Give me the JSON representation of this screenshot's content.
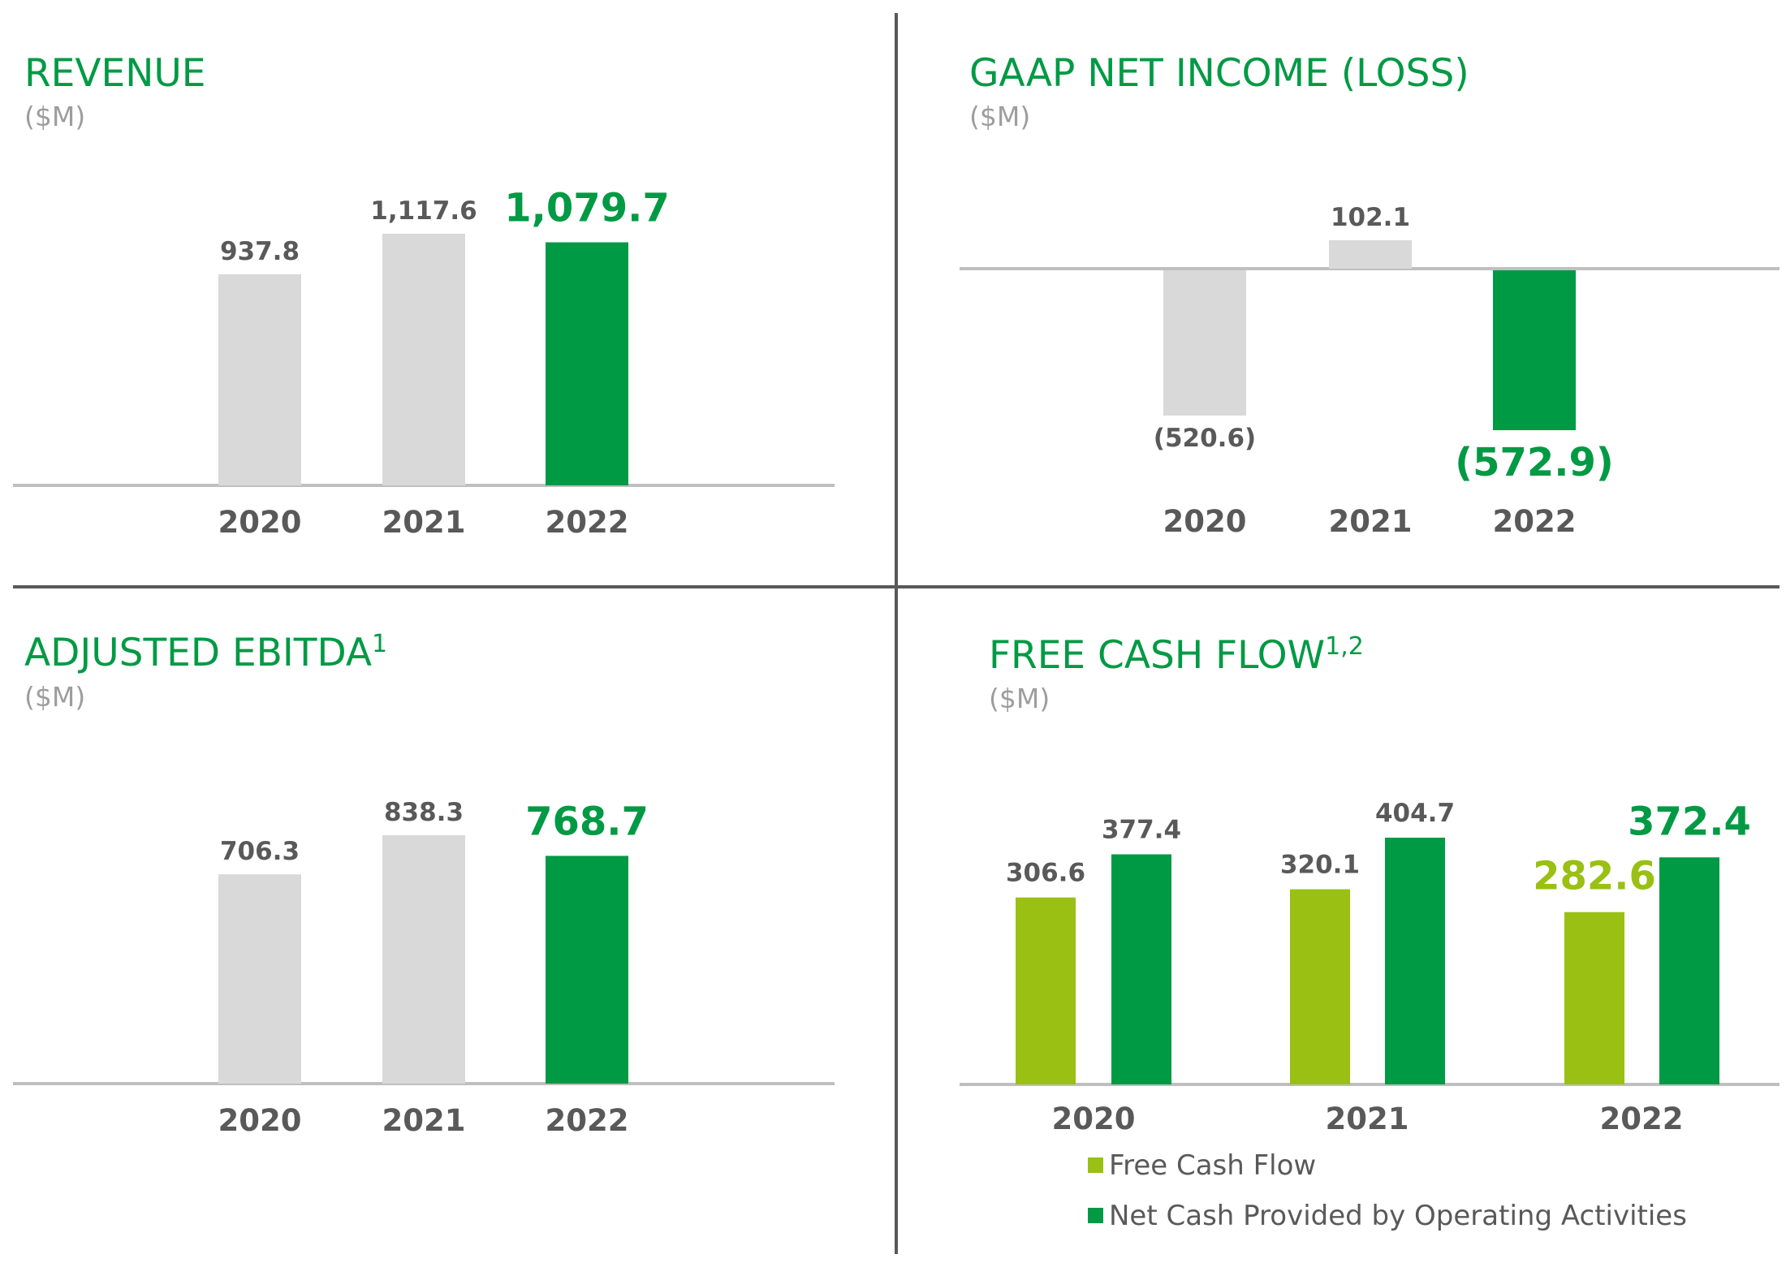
{
  "colors": {
    "title": "#009a44",
    "unit": "#9d9d9d",
    "label": "#595959",
    "prior": "#d9d9d9",
    "highlight": "#009a44",
    "fcf": "#99c013",
    "axis": "#bfbfbf",
    "divider": "#595959"
  },
  "chart_data": [
    {
      "id": "revenue",
      "type": "bar",
      "title": "REVENUE",
      "title_sup": "",
      "unit": "($M)",
      "categories": [
        "2020",
        "2021",
        "2022"
      ],
      "values": [
        937.8,
        1117.6,
        1079.7
      ],
      "labels": [
        "937.8",
        "1,117.6",
        "1,079.7"
      ],
      "highlight_index": 2,
      "ylim": [
        0,
        1250
      ]
    },
    {
      "id": "gaap-net-income",
      "type": "bar",
      "title": "GAAP NET INCOME (LOSS)",
      "title_sup": "",
      "unit": "($M)",
      "categories": [
        "2020",
        "2021",
        "2022"
      ],
      "values": [
        -520.6,
        102.1,
        -572.9
      ],
      "labels": [
        "(520.6)",
        "102.1",
        "(572.9)"
      ],
      "highlight_index": 2,
      "ylim": [
        -600,
        150
      ]
    },
    {
      "id": "adjusted-ebitda",
      "type": "bar",
      "title": "ADJUSTED EBITDA",
      "title_sup": "1",
      "unit": "($M)",
      "categories": [
        "2020",
        "2021",
        "2022"
      ],
      "values": [
        706.3,
        838.3,
        768.7
      ],
      "labels": [
        "706.3",
        "838.3",
        "768.7"
      ],
      "highlight_index": 2,
      "ylim": [
        0,
        950
      ]
    },
    {
      "id": "free-cash-flow",
      "type": "bar",
      "title": "FREE CASH FLOW",
      "title_sup": "1,2",
      "unit": "($M)",
      "categories": [
        "2020",
        "2021",
        "2022"
      ],
      "series": [
        {
          "name": "Free Cash Flow",
          "values": [
            306.6,
            320.1,
            282.6
          ],
          "labels": [
            "306.6",
            "320.1",
            "282.6"
          ]
        },
        {
          "name": "Net Cash Provided by Operating Activities",
          "values": [
            377.4,
            404.7,
            372.4
          ],
          "labels": [
            "377.4",
            "404.7",
            "372.4"
          ]
        }
      ],
      "highlight_index": 2,
      "ylim": [
        0,
        450
      ],
      "legend": "bottom"
    }
  ]
}
